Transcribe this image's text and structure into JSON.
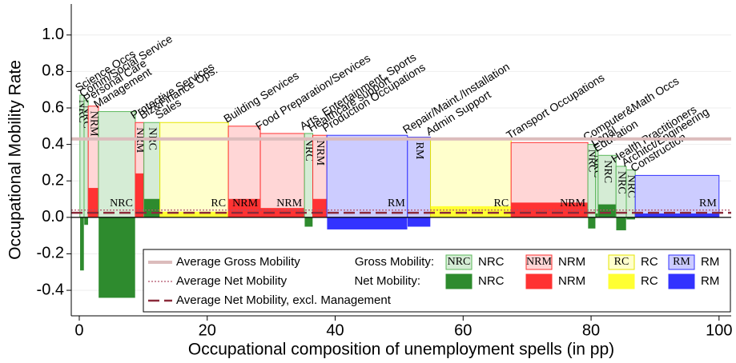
{
  "chart_data": {
    "type": "mekko",
    "x_label": "Occupational composition of unemployment spells (in pp)",
    "y_label": "Occupational Mobility Rate",
    "xlim": [
      -1.25,
      101.9
    ],
    "xticks": [
      0,
      20,
      40,
      60,
      80,
      100
    ],
    "ylim": [
      -0.54,
      1.17
    ],
    "yticks": [
      -0.4,
      -0.2,
      {
        "value": 0,
        "label": "0.0"
      },
      0.2,
      0.4,
      0.6,
      0.8,
      {
        "value": 1,
        "label": "1.0"
      }
    ],
    "grid": true,
    "groups": [
      {
        "name": "NRC",
        "light": "#d5ecd5",
        "edge": "#5cb85c",
        "text": "#6cbf6c",
        "dark": "#2e8b2e"
      },
      {
        "name": "NRM",
        "light": "#ffd6d6",
        "edge": "#ff3333",
        "text": "#f08080",
        "dark": "#ff3333"
      },
      {
        "name": "RC",
        "light": "#ffffcc",
        "edge": "#e6e600",
        "text": "#c8a040",
        "dark": "#ffff33"
      },
      {
        "name": "RM",
        "light": "#ccccff",
        "edge": "#3333ff",
        "text": "#8888ee",
        "dark": "#3333ff"
      }
    ],
    "occupations": {
      "names": [
        "Science Occs",
        "Comm/Social Service",
        "Personal Care",
        "Management",
        "Protective Services",
        "Biz&Finance Ops.",
        "Sales",
        "Building Services",
        "Food Preparation/Services",
        "Arts, Entertainment, Sports",
        "Healthcare support",
        "Production Occupations",
        "Repair/Maint./Installation",
        "Admin Support",
        "Transport Occupations",
        "Computer&Math Occs",
        "Legal",
        "Education",
        "Health Practitioners",
        "Architct/Engineering",
        "Construction"
      ],
      "x0": [
        0.1,
        0.75,
        1.4,
        3.0,
        8.76,
        10.1,
        12.6,
        23.3,
        28.3,
        35.2,
        36.5,
        38.7,
        51.3,
        54.9,
        67.5,
        79.5,
        80.7,
        81.1,
        83.9,
        85.5,
        86.9
      ],
      "x1": [
        0.75,
        1.4,
        3.0,
        8.76,
        10.1,
        12.6,
        23.3,
        28.3,
        35.2,
        36.5,
        38.7,
        51.3,
        54.9,
        67.5,
        79.5,
        80.7,
        81.1,
        83.9,
        85.5,
        86.9,
        100
      ],
      "gross": [
        0.67,
        0.64,
        0.61,
        0.58,
        0.52,
        0.52,
        0.52,
        0.5,
        0.46,
        0.46,
        0.45,
        0.45,
        0.44,
        0.43,
        0.41,
        0.4,
        0.37,
        0.34,
        0.28,
        0.26,
        0.23
      ],
      "net": [
        -0.29,
        -0.04,
        0.16,
        -0.44,
        0.24,
        0.1,
        0.03,
        0.1,
        0.05,
        -0.05,
        0.1,
        -0.065,
        -0.05,
        0.06,
        0.08,
        -0.06,
        0.02,
        0.07,
        -0.07,
        -0.01,
        0.02
      ],
      "group": [
        0,
        0,
        1,
        0,
        1,
        0,
        2,
        1,
        1,
        0,
        1,
        3,
        3,
        2,
        1,
        0,
        0,
        0,
        0,
        0,
        3
      ]
    },
    "reference_lines": [
      {
        "name": "Average Gross Mobility",
        "value": 0.43,
        "color": "#dcbcbc",
        "style": "solid"
      },
      {
        "name": "Average Net Mobility",
        "value": 0.04,
        "color": "#b05068",
        "style": "dotted"
      },
      {
        "name": "Average Net Mobility, excl. Management",
        "value": 0.025,
        "color": "#8b2a3a",
        "style": "dashed"
      }
    ],
    "legend": {
      "gross_label": "Gross Mobility:",
      "net_label": "Net Mobility:"
    }
  }
}
